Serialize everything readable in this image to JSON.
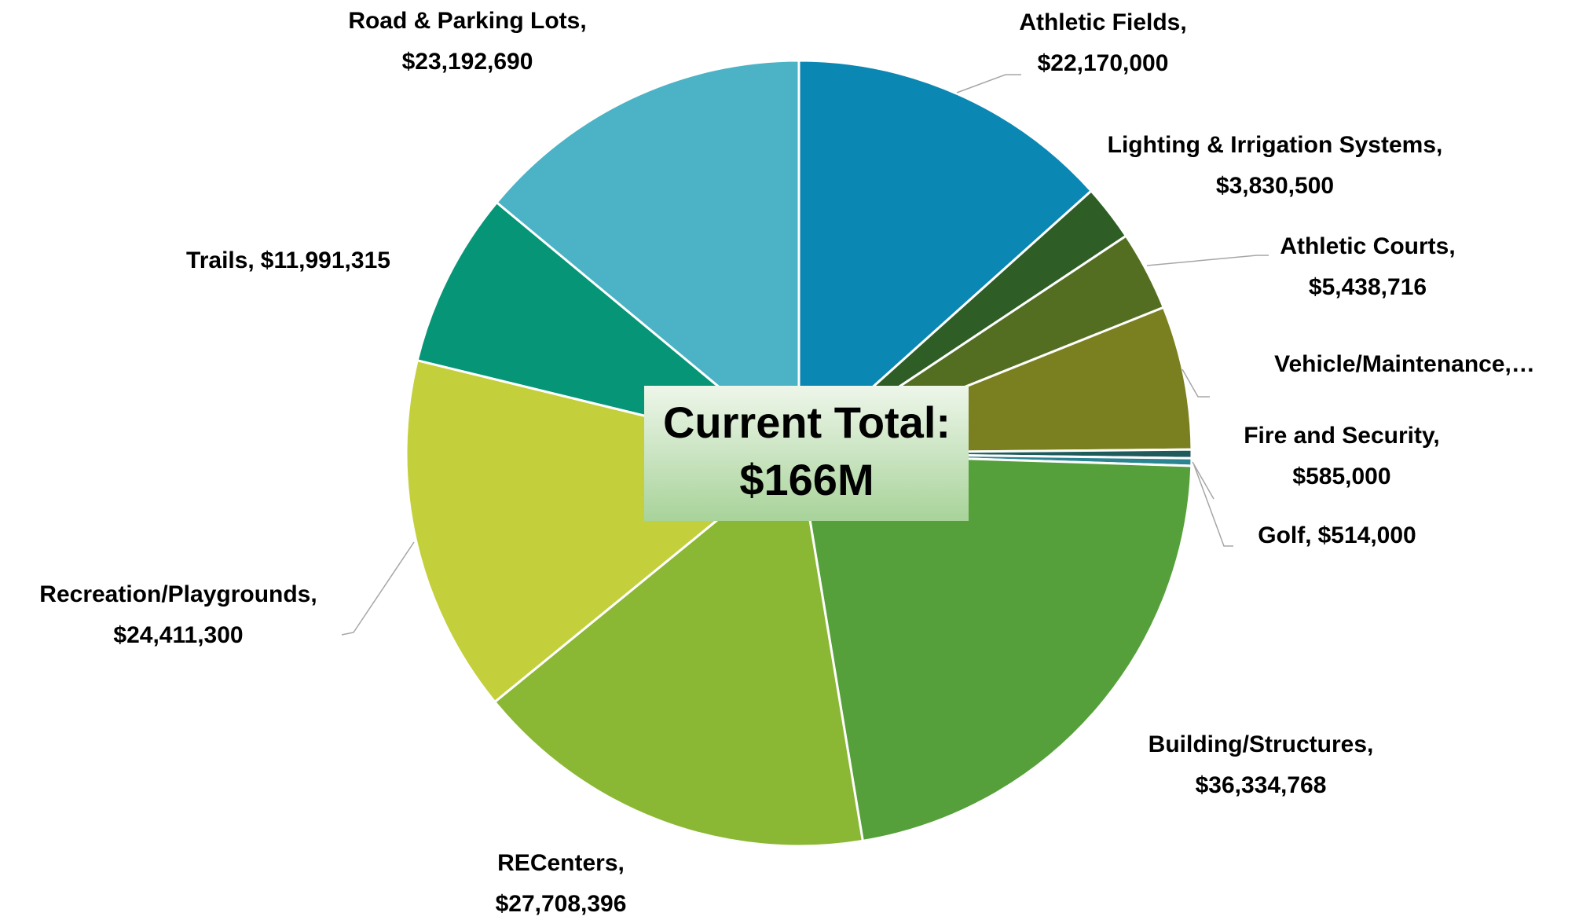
{
  "chart_data": {
    "type": "pie",
    "categories": [
      "Athletic Fields,",
      "Lighting & Irrigation Systems,",
      "Athletic Courts,",
      "Vehicle/Maintenance,…",
      "Fire and Security,",
      "Golf,",
      "Building/Structures,",
      "RECenters,",
      "Recreation/Playgrounds,",
      "Trails,",
      "Road & Parking Lots,"
    ],
    "values": [
      22170000,
      3830500,
      5438716,
      9800000,
      585000,
      514000,
      36334768,
      27708396,
      24411300,
      11991315,
      23192690
    ],
    "value_labels": [
      "$22,170,000",
      "$3,830,500",
      "$5,438,716",
      null,
      "$585,000",
      "$514,000",
      "$36,334,768",
      "$27,708,396",
      "$24,411,300",
      "$11,991,315",
      "$23,192,690"
    ],
    "colors": [
      "#0b87b3",
      "#2e5e26",
      "#536e20",
      "#7a8020",
      "#1f5b5b",
      "#2a8590",
      "#55a03a",
      "#8ab834",
      "#c3d03c",
      "#069577",
      "#4bb3c5"
    ],
    "annotation": [
      "Current Total:",
      "$166M"
    ]
  }
}
